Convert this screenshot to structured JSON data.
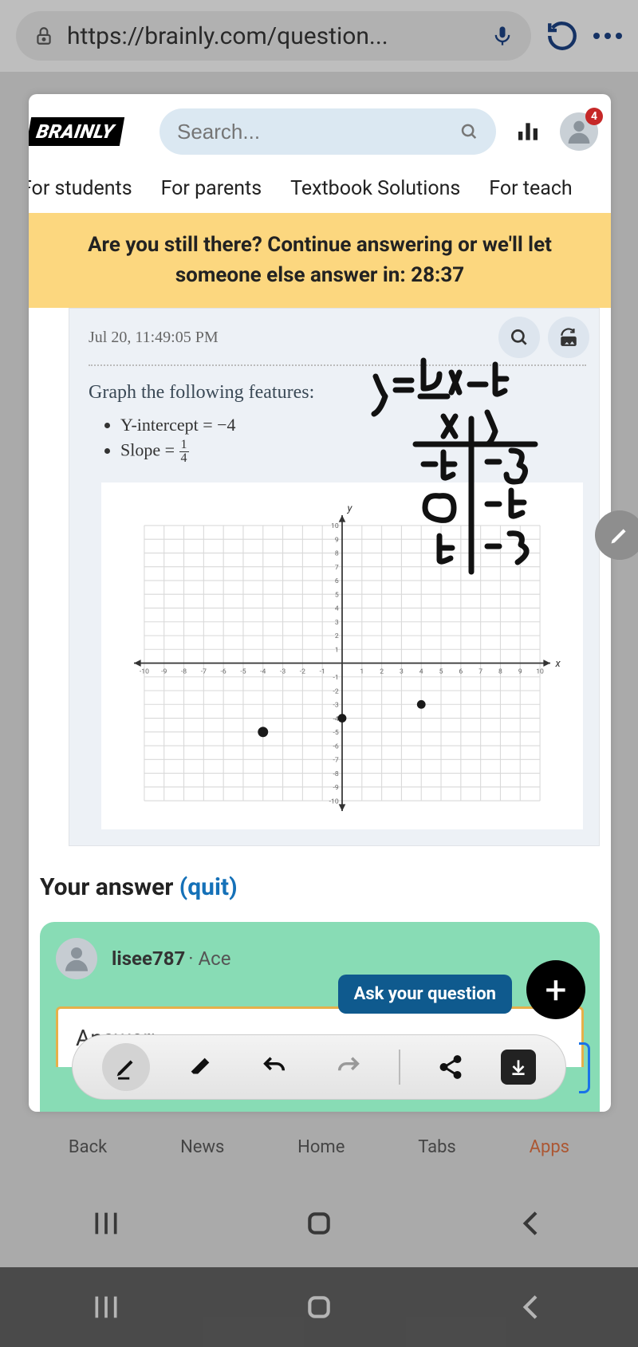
{
  "browser": {
    "url": "https://brainly.com/question..."
  },
  "header": {
    "logo": "BRAINLY",
    "search_placeholder": "Search...",
    "notification_count": "4"
  },
  "tabs": [
    "For students",
    "For parents",
    "Textbook Solutions",
    "For teach"
  ],
  "banner": {
    "line1": "Are you still there? Continue answering or we'll let",
    "line2": "someone else answer in:",
    "timer": "28:37"
  },
  "question": {
    "timestamp": "Jul 20, 11:49:05 PM",
    "prompt": "Graph the following features:",
    "bullets": {
      "b1_pre": "Y-intercept = ",
      "b1_val": "−4",
      "b2_pre": "Slope = ",
      "frac_n": "1",
      "frac_d": "4"
    },
    "handwriting_eq": "y = ¼x − 4"
  },
  "graph": {
    "type": "scatter_on_grid",
    "xlim": [
      -10,
      10
    ],
    "ylim": [
      -10,
      10
    ],
    "xtick_step": 1,
    "ytick_step": 1,
    "tick_fontsize": 8,
    "background_color": "#ffffff",
    "grid_color": "#d9d9d9",
    "axis_color": "#333333",
    "axis_width": 1.6,
    "arrowheads": true,
    "x_axis_label": "x",
    "y_axis_label": "y",
    "points": [
      {
        "x": -4,
        "y": -5,
        "r": 6,
        "color": "#1a1a1a"
      },
      {
        "x": 0,
        "y": -4,
        "r": 5,
        "color": "#1a1a1a"
      },
      {
        "x": 4,
        "y": -3,
        "r": 5,
        "color": "#1a1a1a"
      }
    ]
  },
  "answer_section": {
    "label": "Your answer",
    "quit": "(quit)",
    "author": "lisee787",
    "rank": "Ace",
    "ask_button": "Ask your question",
    "field_label": "Answer:"
  },
  "bottom_labels": {
    "back": "Back",
    "news": "News",
    "home": "Home",
    "tabs": "Tabs",
    "apps": "Apps"
  },
  "colors": {
    "banner_bg": "#fcd77f",
    "search_pill_bg": "#dbe8f2",
    "question_bg": "#edf1f6",
    "answer_card_bg": "#88dcb5",
    "ask_btn_bg": "#0f5a8e",
    "link_blue": "#1571b8",
    "badge_red": "#c62828"
  }
}
